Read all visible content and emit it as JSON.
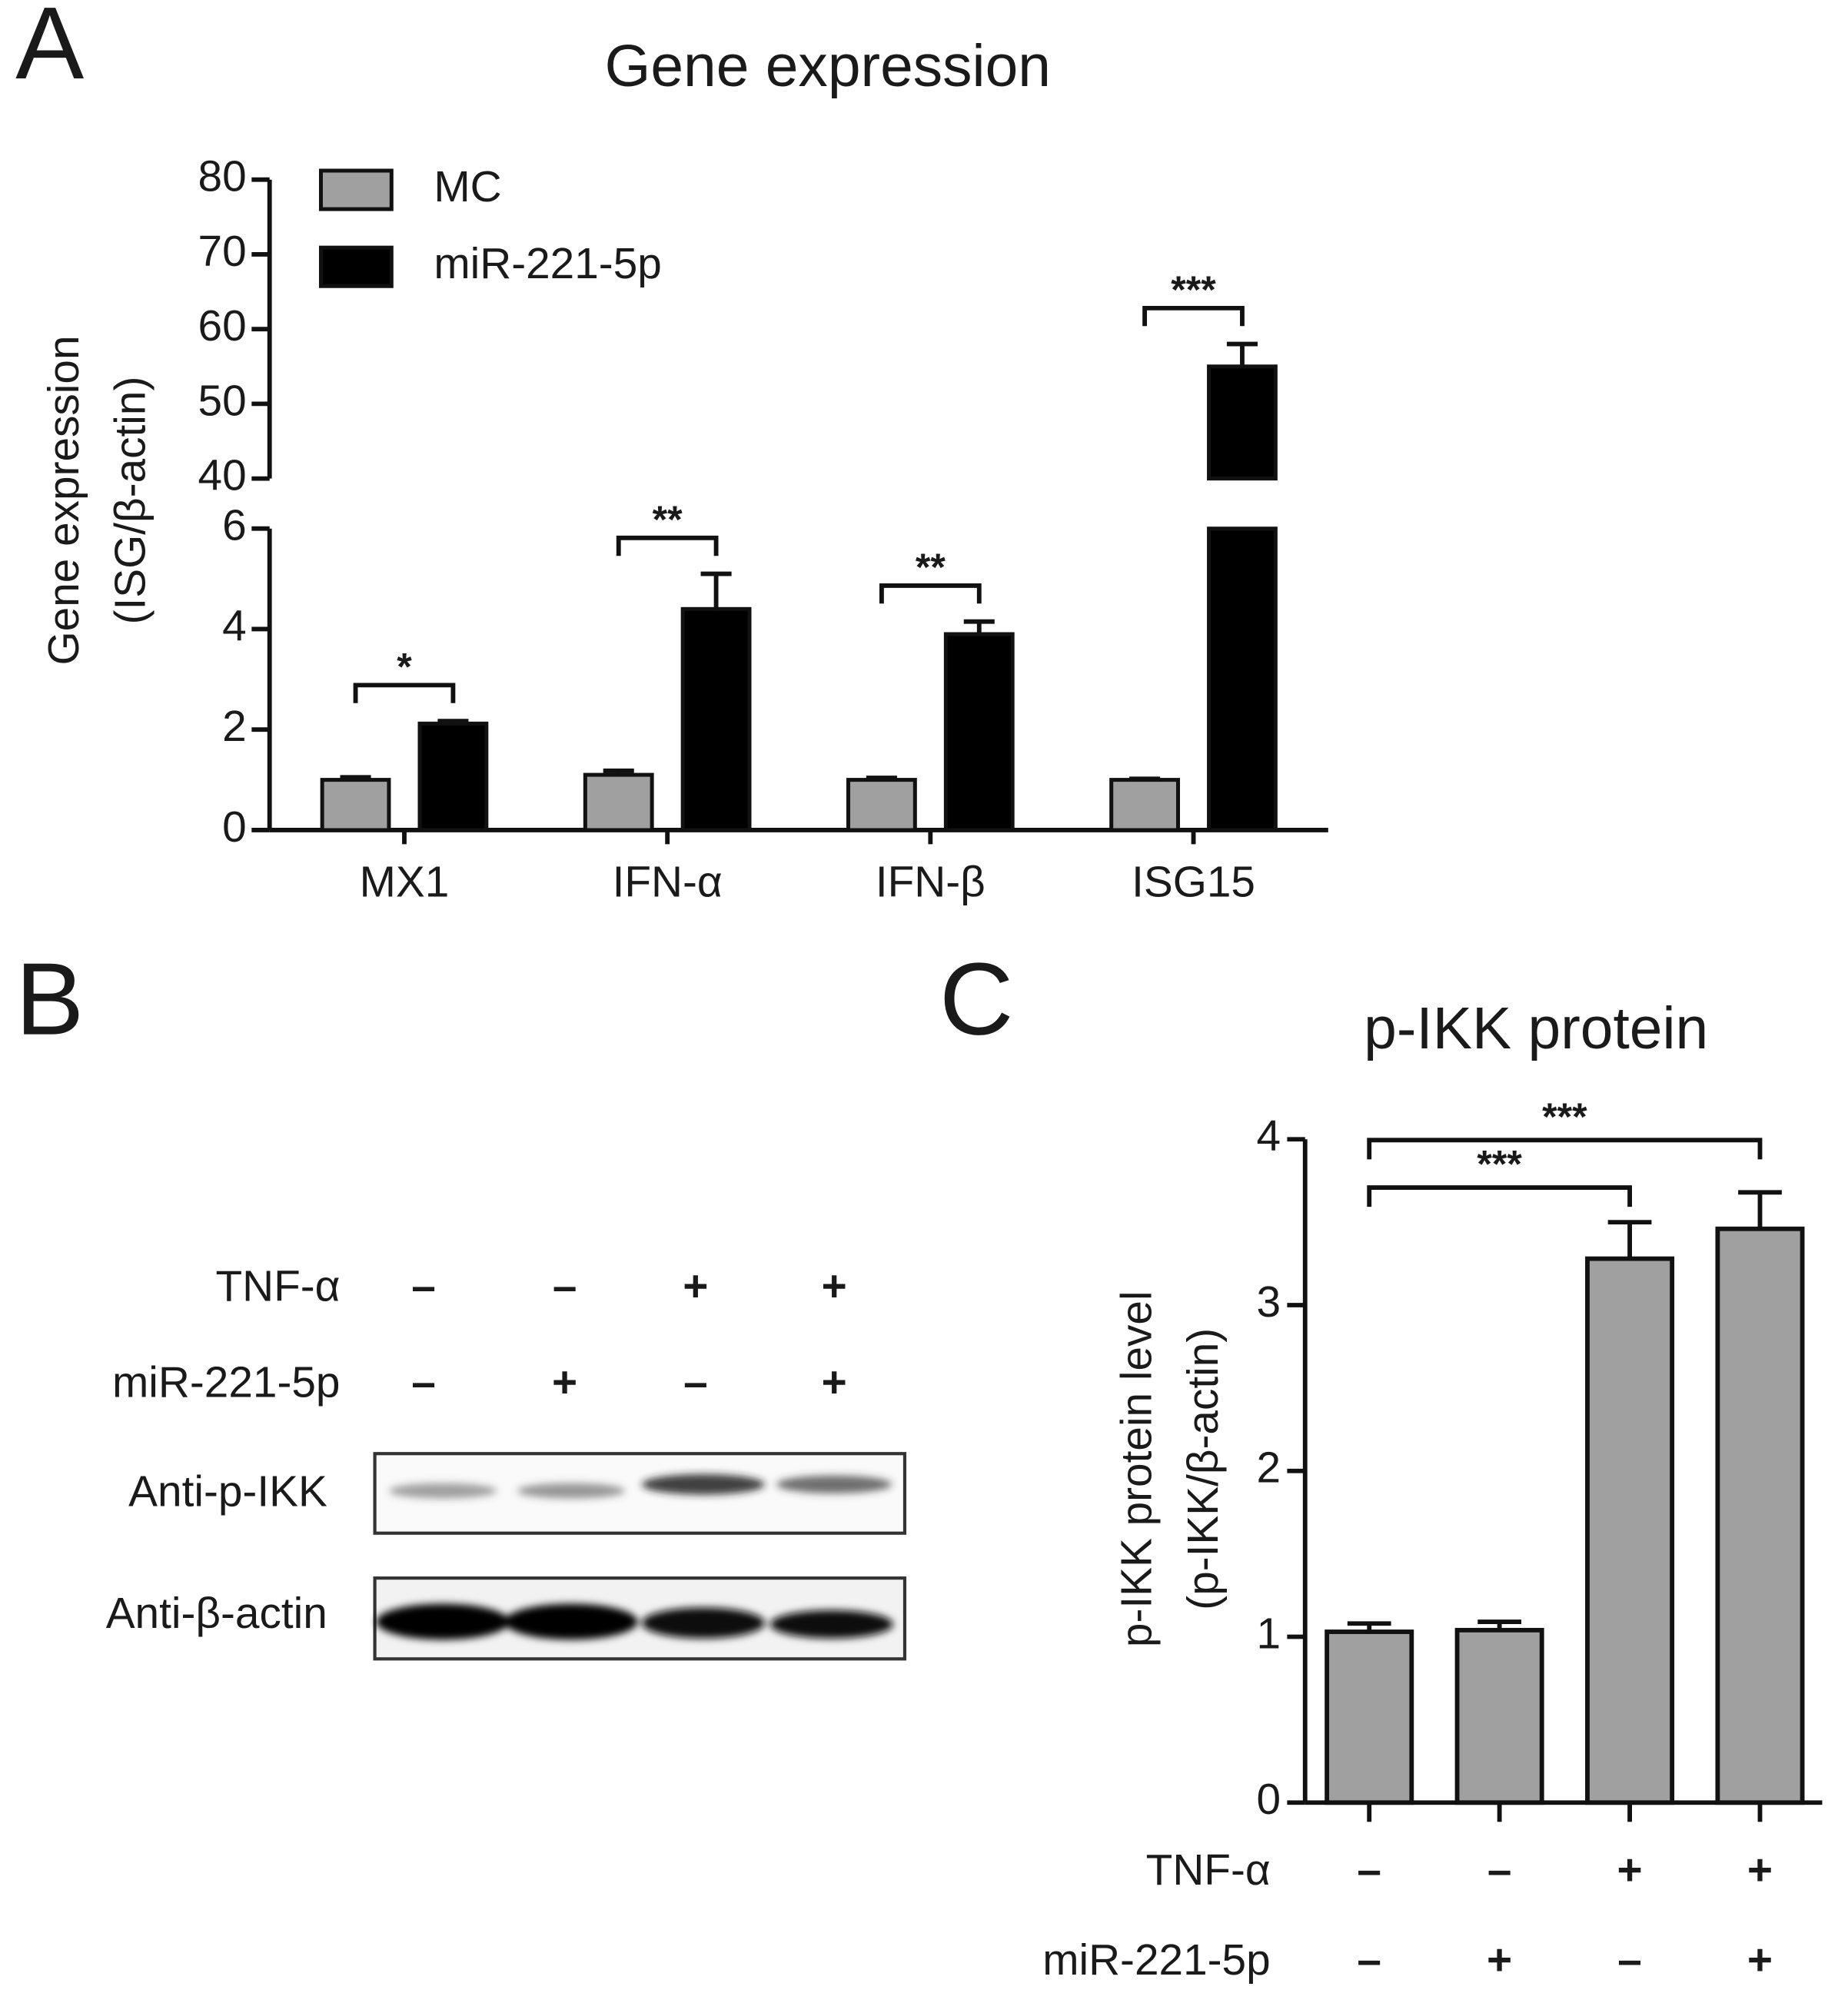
{
  "panels": [
    "A",
    "B",
    "C"
  ],
  "chart_data": [
    {
      "type": "bar",
      "title": "Gene expression",
      "y_label": [
        "Gene expression",
        "(ISG/β-actin)"
      ],
      "categories": [
        "MX1",
        "IFN-α",
        "IFN-β",
        "ISG15"
      ],
      "series": [
        {
          "name": "MC",
          "color": "#a0a0a0",
          "values": [
            1.0,
            1.1,
            1.0,
            1.0
          ],
          "errors": [
            0.05,
            0.08,
            0.04,
            0.02
          ]
        },
        {
          "name": "miR-221-5p",
          "color": "#000000",
          "values": [
            2.12,
            4.4,
            3.9,
            55
          ],
          "errors": [
            0.05,
            0.7,
            0.25,
            3
          ]
        }
      ],
      "ylim": [
        0,
        80
      ],
      "y_break": [
        6,
        40
      ],
      "yticks": [
        0,
        2,
        4,
        6,
        40,
        50,
        60,
        70,
        80
      ],
      "annotations": [
        {
          "text": "*",
          "category": 0
        },
        {
          "text": "**",
          "category": 1
        },
        {
          "text": "**",
          "category": 2
        },
        {
          "text": "***",
          "category": 3
        }
      ]
    },
    {
      "type": "bar",
      "title": "p-IKK protein",
      "y_label": [
        "p-IKK protein level",
        "(p-IKK/β-actin)"
      ],
      "categories": [
        null,
        null,
        null,
        null
      ],
      "conditions": [
        {
          "name": "TNF-α",
          "signs": [
            "–",
            "–",
            "+",
            "+"
          ]
        },
        {
          "name": "miR-221-5p",
          "signs": [
            "–",
            "+",
            "–",
            "+"
          ]
        }
      ],
      "color": "#a0a0a0",
      "values": [
        1.03,
        1.04,
        3.28,
        3.46
      ],
      "errors": [
        0.05,
        0.05,
        0.22,
        0.22
      ],
      "ylim": [
        0,
        4
      ],
      "yticks": [
        0,
        1,
        2,
        3,
        4
      ],
      "annotations": [
        {
          "text": "***",
          "from": 0,
          "to": 2
        },
        {
          "text": "***",
          "from": 0,
          "to": 3
        }
      ]
    }
  ],
  "blot": {
    "conditions": [
      {
        "name": "TNF-α",
        "signs": [
          "–",
          "–",
          "+",
          "+"
        ]
      },
      {
        "name": "miR-221-5p",
        "signs": [
          "–",
          "+",
          "–",
          "+"
        ]
      }
    ],
    "rows": [
      "Anti-p-IKK",
      "Anti-β-actin"
    ]
  }
}
